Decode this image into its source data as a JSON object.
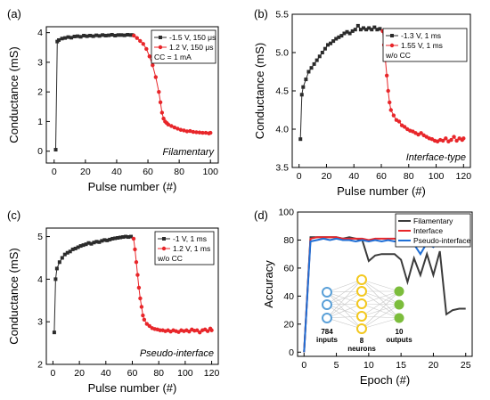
{
  "chart_data": [
    {
      "type": "line",
      "panel_label": "(a)",
      "xlabel": "Pulse number (#)",
      "ylabel": "Conductance (mS)",
      "xlim": [
        -5,
        105
      ],
      "ylim": [
        -0.4,
        4.2
      ],
      "xticks": [
        0,
        20,
        40,
        60,
        80,
        100
      ],
      "yticks": [
        0,
        1,
        2,
        3,
        4
      ],
      "annotation": "Filamentary",
      "legend_note": "CC = 1 mA",
      "legend_position": "top-right",
      "series": [
        {
          "name": "-1.5 V, 150 μs",
          "color": "#2b2b2b",
          "marker": "square",
          "points": [
            [
              1,
              0.05
            ],
            [
              2,
              3.7
            ],
            [
              3,
              3.75
            ],
            [
              5,
              3.8
            ],
            [
              7,
              3.82
            ],
            [
              9,
              3.85
            ],
            [
              11,
              3.83
            ],
            [
              13,
              3.87
            ],
            [
              15,
              3.88
            ],
            [
              17,
              3.86
            ],
            [
              19,
              3.9
            ],
            [
              21,
              3.88
            ],
            [
              23,
              3.9
            ],
            [
              25,
              3.88
            ],
            [
              27,
              3.91
            ],
            [
              29,
              3.89
            ],
            [
              31,
              3.92
            ],
            [
              33,
              3.9
            ],
            [
              35,
              3.91
            ],
            [
              37,
              3.93
            ],
            [
              39,
              3.9
            ],
            [
              41,
              3.92
            ],
            [
              43,
              3.92
            ],
            [
              45,
              3.91
            ],
            [
              47,
              3.93
            ],
            [
              49,
              3.92
            ],
            [
              50,
              3.92
            ]
          ]
        },
        {
          "name": "1.2 V, 150 μs",
          "color": "#e8262a",
          "marker": "circle",
          "points": [
            [
              51,
              3.9
            ],
            [
              53,
              3.82
            ],
            [
              55,
              3.72
            ],
            [
              57,
              3.62
            ],
            [
              59,
              3.45
            ],
            [
              61,
              3.2
            ],
            [
              63,
              2.9
            ],
            [
              65,
              2.5
            ],
            [
              67,
              2.0
            ],
            [
              68,
              1.65
            ],
            [
              69,
              1.3
            ],
            [
              70,
              1.1
            ],
            [
              71,
              1.0
            ],
            [
              72,
              0.95
            ],
            [
              73,
              0.9
            ],
            [
              75,
              0.85
            ],
            [
              77,
              0.8
            ],
            [
              79,
              0.76
            ],
            [
              81,
              0.72
            ],
            [
              83,
              0.7
            ],
            [
              85,
              0.67
            ],
            [
              87,
              0.68
            ],
            [
              89,
              0.65
            ],
            [
              91,
              0.64
            ],
            [
              93,
              0.63
            ],
            [
              95,
              0.62
            ],
            [
              97,
              0.62
            ],
            [
              99,
              0.6
            ],
            [
              100,
              0.62
            ]
          ]
        }
      ]
    },
    {
      "type": "line",
      "panel_label": "(b)",
      "xlabel": "Pulse number (#)",
      "ylabel": "Conductance (mS)",
      "xlim": [
        -5,
        125
      ],
      "ylim": [
        3.5,
        5.5
      ],
      "xticks": [
        0,
        20,
        40,
        60,
        80,
        100,
        120
      ],
      "yticks": [
        3.5,
        4.0,
        4.5,
        5.0,
        5.5
      ],
      "annotation": "Interface-type",
      "legend_note": "w/o CC",
      "legend_position": "top-right",
      "series": [
        {
          "name": "-1.3 V, 1 ms",
          "color": "#2b2b2b",
          "marker": "square",
          "points": [
            [
              1,
              3.87
            ],
            [
              2,
              4.45
            ],
            [
              3,
              4.55
            ],
            [
              5,
              4.65
            ],
            [
              7,
              4.75
            ],
            [
              9,
              4.8
            ],
            [
              11,
              4.85
            ],
            [
              13,
              4.9
            ],
            [
              15,
              4.95
            ],
            [
              17,
              5.0
            ],
            [
              19,
              5.05
            ],
            [
              21,
              5.1
            ],
            [
              23,
              5.12
            ],
            [
              25,
              5.15
            ],
            [
              27,
              5.18
            ],
            [
              29,
              5.2
            ],
            [
              31,
              5.22
            ],
            [
              33,
              5.25
            ],
            [
              35,
              5.27
            ],
            [
              37,
              5.25
            ],
            [
              39,
              5.28
            ],
            [
              41,
              5.3
            ],
            [
              43,
              5.35
            ],
            [
              45,
              5.3
            ],
            [
              47,
              5.32
            ],
            [
              49,
              5.3
            ],
            [
              51,
              5.32
            ],
            [
              53,
              5.3
            ],
            [
              55,
              5.33
            ],
            [
              57,
              5.3
            ],
            [
              59,
              5.31
            ]
          ]
        },
        {
          "name": "1.55 V, 1 ms",
          "color": "#e8262a",
          "marker": "circle",
          "points": [
            [
              61,
              5.28
            ],
            [
              62,
              5.1
            ],
            [
              63,
              4.9
            ],
            [
              64,
              4.7
            ],
            [
              65,
              4.5
            ],
            [
              66,
              4.35
            ],
            [
              67,
              4.25
            ],
            [
              69,
              4.18
            ],
            [
              71,
              4.12
            ],
            [
              73,
              4.1
            ],
            [
              75,
              4.05
            ],
            [
              77,
              4.03
            ],
            [
              79,
              4.0
            ],
            [
              81,
              3.98
            ],
            [
              83,
              3.97
            ],
            [
              85,
              3.95
            ],
            [
              87,
              3.93
            ],
            [
              89,
              3.95
            ],
            [
              91,
              3.92
            ],
            [
              93,
              3.9
            ],
            [
              95,
              3.88
            ],
            [
              97,
              3.87
            ],
            [
              99,
              3.85
            ],
            [
              101,
              3.84
            ],
            [
              103,
              3.86
            ],
            [
              105,
              3.85
            ],
            [
              107,
              3.88
            ],
            [
              109,
              3.84
            ],
            [
              111,
              3.86
            ],
            [
              113,
              3.9
            ],
            [
              115,
              3.85
            ],
            [
              117,
              3.88
            ],
            [
              119,
              3.86
            ],
            [
              120,
              3.88
            ]
          ]
        }
      ]
    },
    {
      "type": "line",
      "panel_label": "(c)",
      "xlabel": "Pulse number (#)",
      "ylabel": "Conductance (mS)",
      "xlim": [
        -5,
        125
      ],
      "ylim": [
        2,
        5.2
      ],
      "xticks": [
        0,
        20,
        40,
        60,
        80,
        100,
        120
      ],
      "yticks": [
        2,
        3,
        4,
        5
      ],
      "annotation": "Pseudo-interface",
      "legend_note": "w/o CC",
      "legend_position": "top-right",
      "series": [
        {
          "name": "-1 V, 1 ms",
          "color": "#2b2b2b",
          "marker": "square",
          "points": [
            [
              1,
              2.75
            ],
            [
              2,
              4.0
            ],
            [
              3,
              4.25
            ],
            [
              5,
              4.4
            ],
            [
              7,
              4.5
            ],
            [
              9,
              4.58
            ],
            [
              11,
              4.62
            ],
            [
              13,
              4.65
            ],
            [
              15,
              4.7
            ],
            [
              17,
              4.72
            ],
            [
              19,
              4.75
            ],
            [
              21,
              4.78
            ],
            [
              23,
              4.8
            ],
            [
              25,
              4.82
            ],
            [
              27,
              4.85
            ],
            [
              29,
              4.83
            ],
            [
              31,
              4.86
            ],
            [
              33,
              4.88
            ],
            [
              35,
              4.87
            ],
            [
              37,
              4.9
            ],
            [
              39,
              4.92
            ],
            [
              41,
              4.91
            ],
            [
              43,
              4.93
            ],
            [
              45,
              4.95
            ],
            [
              47,
              4.96
            ],
            [
              49,
              4.97
            ],
            [
              51,
              4.98
            ],
            [
              53,
              4.99
            ],
            [
              55,
              5.0
            ],
            [
              57,
              4.99
            ],
            [
              59,
              5.0
            ]
          ]
        },
        {
          "name": "1.2 V, 1 ms",
          "color": "#e8262a",
          "marker": "circle",
          "points": [
            [
              61,
              4.95
            ],
            [
              62,
              4.7
            ],
            [
              63,
              4.4
            ],
            [
              64,
              4.1
            ],
            [
              65,
              3.8
            ],
            [
              66,
              3.55
            ],
            [
              67,
              3.35
            ],
            [
              68,
              3.15
            ],
            [
              69,
              3.05
            ],
            [
              71,
              2.95
            ],
            [
              73,
              2.9
            ],
            [
              75,
              2.85
            ],
            [
              77,
              2.83
            ],
            [
              79,
              2.82
            ],
            [
              81,
              2.8
            ],
            [
              83,
              2.8
            ],
            [
              85,
              2.78
            ],
            [
              87,
              2.8
            ],
            [
              89,
              2.77
            ],
            [
              91,
              2.8
            ],
            [
              93,
              2.78
            ],
            [
              95,
              2.76
            ],
            [
              97,
              2.8
            ],
            [
              99,
              2.78
            ],
            [
              101,
              2.8
            ],
            [
              103,
              2.77
            ],
            [
              105,
              2.82
            ],
            [
              107,
              2.79
            ],
            [
              109,
              2.8
            ],
            [
              111,
              2.75
            ],
            [
              113,
              2.8
            ],
            [
              115,
              2.82
            ],
            [
              117,
              2.78
            ],
            [
              119,
              2.84
            ],
            [
              120,
              2.8
            ]
          ]
        }
      ]
    },
    {
      "type": "line",
      "panel_label": "(d)",
      "xlabel": "Epoch (#)",
      "ylabel": "Accuracy",
      "xlim": [
        -1,
        26
      ],
      "ylim": [
        -3,
        100
      ],
      "xticks": [
        0,
        5,
        10,
        15,
        20,
        25
      ],
      "yticks": [
        0,
        20,
        40,
        60,
        80,
        100
      ],
      "legend_position": "top-right",
      "series": [
        {
          "name": "Filamentary",
          "color": "#3b3b3b",
          "values": [
            0,
            82,
            82,
            82,
            82,
            82,
            81,
            82,
            81,
            80,
            65,
            69,
            70,
            70,
            70,
            66,
            50,
            67,
            55,
            70,
            55,
            72,
            27,
            30,
            31,
            31
          ]
        },
        {
          "name": "Interface",
          "color": "#e8262a",
          "values": [
            0,
            81,
            82,
            82,
            82,
            82,
            81,
            81,
            81,
            81,
            80,
            81,
            81,
            81,
            81,
            80,
            81,
            80,
            81,
            81,
            80,
            81,
            80,
            81,
            81,
            81
          ]
        },
        {
          "name": "Pseudo-interface",
          "color": "#1f6fd6",
          "values": [
            0,
            79,
            80,
            81,
            80,
            81,
            80,
            80,
            79,
            80,
            79,
            80,
            79,
            80,
            79,
            79,
            77,
            77,
            70,
            78,
            75,
            80,
            79,
            79,
            79,
            79
          ]
        }
      ],
      "inset_network": {
        "input_label": "784",
        "input_sublabel": "inputs",
        "hidden_label": "8",
        "hidden_sublabel": "neurons",
        "output_label": "10",
        "output_sublabel": "outputs",
        "input_color": "#5aa0d8",
        "hidden_color": "#f3c81e",
        "output_color": "#7cbd3c"
      }
    }
  ]
}
